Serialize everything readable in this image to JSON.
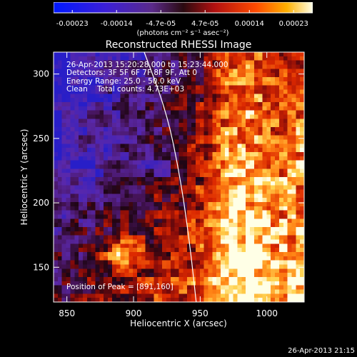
{
  "colorbar": {
    "tick_labels": [
      "-0.00023",
      "-0.00014",
      "-4.7e-05",
      "4.7e-05",
      "0.00014",
      "0.00023"
    ],
    "units_label": "(photons cm⁻² s⁻¹ asec⁻²)"
  },
  "chart_data": {
    "type": "heatmap",
    "title": "Reconstructed RHESSI Image",
    "xlabel": "Heliocentric X (arcsec)",
    "ylabel": "Heliocentric Y (arcsec)",
    "xlim": [
      840,
      1028
    ],
    "ylim": [
      123,
      317
    ],
    "xticks": [
      850,
      900,
      950,
      1000
    ],
    "yticks": [
      150,
      200,
      250,
      300
    ],
    "clim": [
      -0.00023,
      0.00023
    ],
    "colormap": "blue-purple-red-yellow-white",
    "annotations": [
      "26-Apr-2013 15:20:28.000 to 15:23:44.000",
      "Detectors: 3F 5F 6F 7F 8F 9F, Att 0",
      "Energy Range: 25.0 - 50.0 keV",
      "Clean    Total counts: 4.73E+03"
    ],
    "peak_label": "Position of Peak = [891,160]",
    "peak": {
      "x": 891,
      "y": 160
    },
    "limb_curve": [
      [
        908,
        317
      ],
      [
        925,
        270
      ],
      [
        935,
        220
      ],
      [
        942,
        170
      ],
      [
        947,
        123
      ]
    ]
  },
  "footer": {
    "timestamp": "26-Apr-2013 21:15"
  }
}
